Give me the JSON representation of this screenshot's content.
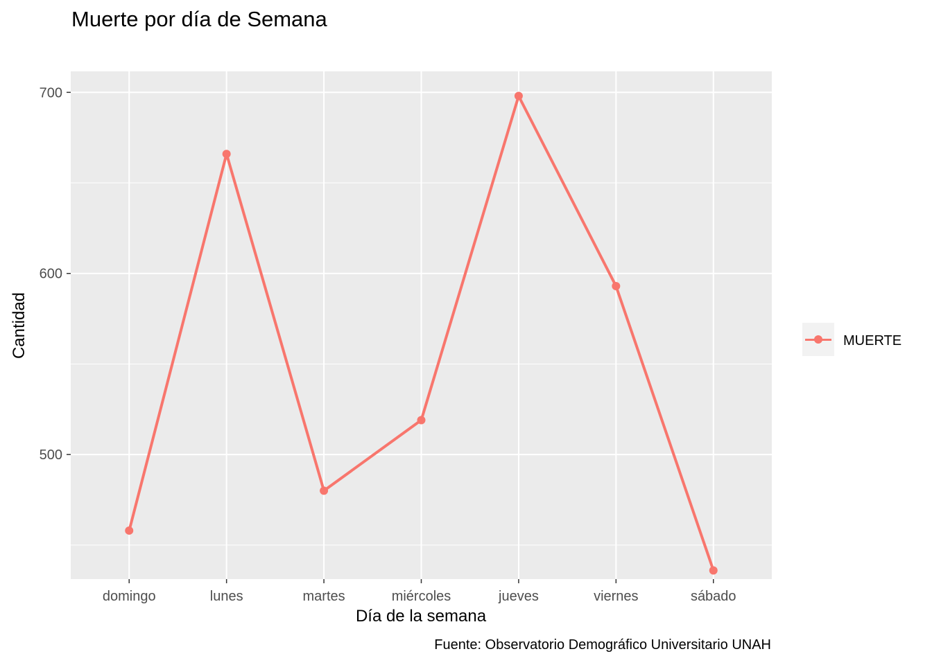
{
  "chart_data": {
    "type": "line",
    "title": "Muerte por día de Semana",
    "xlabel": "Día de la semana",
    "ylabel": "Cantidad",
    "caption": "Fuente: Observatorio Demográfico Universitario UNAH",
    "categories": [
      "domingo",
      "lunes",
      "martes",
      "miércoles",
      "jueves",
      "viernes",
      "sábado"
    ],
    "series": [
      {
        "name": "MUERTE",
        "values": [
          458,
          666,
          480,
          519,
          698,
          593,
          436
        ]
      }
    ],
    "ylim": [
      431.2,
      711.6
    ],
    "yticks": [
      500,
      600,
      700
    ],
    "grid": true,
    "legend": {
      "position": "right"
    },
    "colors": {
      "series": "#f8766d",
      "panel": "#ebebeb",
      "grid": "#ffffff"
    }
  }
}
